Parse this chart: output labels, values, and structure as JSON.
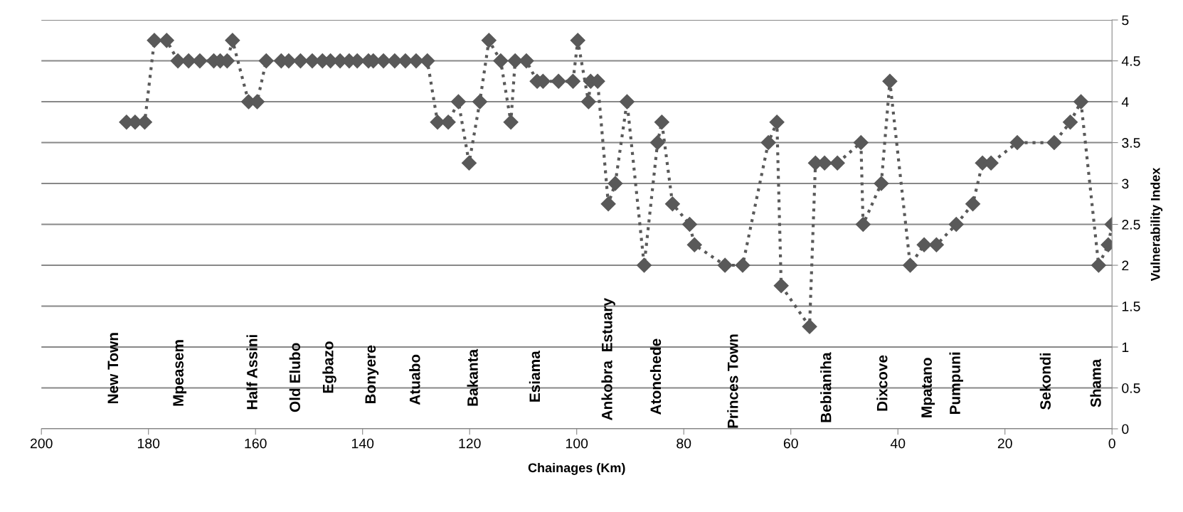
{
  "chart_data": {
    "type": "line",
    "xlabel": "Chainages (Km)",
    "ylabel": "Vulnerability Index",
    "x": [
      184.1,
      182.5,
      180.7,
      178.9,
      176.6,
      174.5,
      172.5,
      170.4,
      167.8,
      166.6,
      165.3,
      164.3,
      161.3,
      159.7,
      158.0,
      155.2,
      153.8,
      151.6,
      149.4,
      147.5,
      146.0,
      144.2,
      142.5,
      141.0,
      138.9,
      138.0,
      136.1,
      134.0,
      132.0,
      130.0,
      127.9,
      126.0,
      124.0,
      122.1,
      120.1,
      118.1,
      116.4,
      114.2,
      112.3,
      111.5,
      109.4,
      107.4,
      106.3,
      103.4,
      100.7,
      99.8,
      97.8,
      97.4,
      96.1,
      94.1,
      92.8,
      90.6,
      87.4,
      84.9,
      84.1,
      82.1,
      78.9,
      78.0,
      72.3,
      69.0,
      64.2,
      62.6,
      61.8,
      56.5,
      55.4,
      53.7,
      51.3,
      46.9,
      46.5,
      43.1,
      41.5,
      37.7,
      35.1,
      32.8,
      29.1,
      26.0,
      24.2,
      22.6,
      17.7,
      10.8,
      7.8,
      5.8,
      2.5,
      0.7,
      0
    ],
    "series": [
      {
        "color": "#595959",
        "values": [
          3.75,
          3.75,
          3.75,
          4.75,
          4.75,
          4.5,
          4.5,
          4.5,
          4.5,
          4.5,
          4.5,
          4.75,
          4.0,
          4.0,
          4.5,
          4.5,
          4.5,
          4.5,
          4.5,
          4.5,
          4.5,
          4.5,
          4.5,
          4.5,
          4.5,
          4.5,
          4.5,
          4.5,
          4.5,
          4.5,
          4.5,
          3.75,
          3.75,
          4.0,
          3.25,
          4.0,
          4.75,
          4.5,
          3.75,
          4.5,
          4.5,
          4.25,
          4.25,
          4.25,
          4.25,
          4.75,
          4.0,
          4.25,
          4.25,
          2.75,
          3.0,
          4.0,
          2.0,
          3.5,
          3.75,
          2.75,
          2.5,
          2.25,
          2.0,
          2.0,
          3.5,
          3.75,
          1.75,
          1.25,
          3.25,
          3.25,
          3.25,
          3.5,
          2.5,
          3.0,
          4.25,
          2.0,
          2.25,
          2.25,
          2.5,
          2.75,
          3.25,
          3.25,
          3.5,
          3.5,
          3.75,
          4.0,
          2.0,
          2.25,
          2.5
        ]
      }
    ],
    "xlim": [
      200,
      0
    ],
    "xticks": [
      200,
      180,
      160,
      140,
      120,
      100,
      80,
      60,
      40,
      20,
      0
    ],
    "ylim": [
      0,
      5
    ],
    "yticks": [
      0,
      0.5,
      1,
      1.5,
      2,
      2.5,
      3,
      3.5,
      4,
      4.5,
      5
    ],
    "grid": "y",
    "legend": false,
    "marker": "diamond",
    "line_style": "dotted",
    "annotations": [
      "New Town",
      "Mpeasem",
      "Half Assini",
      "Old Elubo",
      "Egbazo",
      "Bonyere",
      "Atuabo",
      "Bakanta",
      "Esiama",
      "Ankobra  Estuary",
      "Atonchede",
      "Princes Town",
      "Bebianiha",
      "Dixcove",
      "Mpatano",
      "Pumpuni",
      "Sekondi",
      "Shama"
    ]
  }
}
